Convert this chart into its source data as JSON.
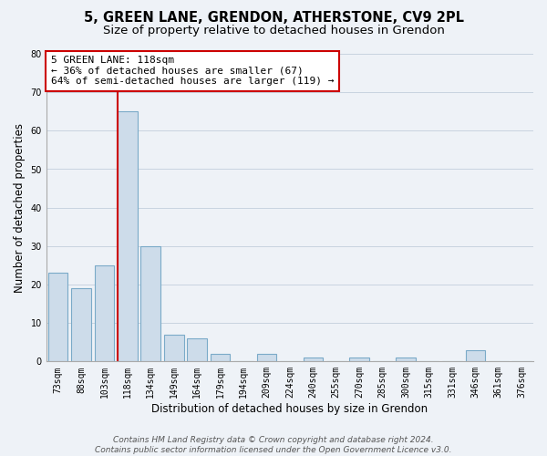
{
  "title": "5, GREEN LANE, GRENDON, ATHERSTONE, CV9 2PL",
  "subtitle": "Size of property relative to detached houses in Grendon",
  "xlabel": "Distribution of detached houses by size in Grendon",
  "ylabel": "Number of detached properties",
  "categories": [
    "73sqm",
    "88sqm",
    "103sqm",
    "118sqm",
    "134sqm",
    "149sqm",
    "164sqm",
    "179sqm",
    "194sqm",
    "209sqm",
    "224sqm",
    "240sqm",
    "255sqm",
    "270sqm",
    "285sqm",
    "300sqm",
    "315sqm",
    "331sqm",
    "346sqm",
    "361sqm",
    "376sqm"
  ],
  "values": [
    23,
    19,
    25,
    65,
    30,
    7,
    6,
    2,
    0,
    2,
    0,
    1,
    0,
    1,
    0,
    1,
    0,
    0,
    3,
    0,
    0
  ],
  "bar_color": "#cddcea",
  "bar_edge_color": "#7aaac8",
  "vline_index": 3,
  "vline_color": "#cc0000",
  "annotation_line1": "5 GREEN LANE: 118sqm",
  "annotation_line2": "← 36% of detached houses are smaller (67)",
  "annotation_line3": "64% of semi-detached houses are larger (119) →",
  "annotation_box_edge_color": "#cc0000",
  "annotation_box_bg_color": "#ffffff",
  "ylim": [
    0,
    80
  ],
  "yticks": [
    0,
    10,
    20,
    30,
    40,
    50,
    60,
    70,
    80
  ],
  "grid_color": "#c8d4e0",
  "bg_color": "#eef2f7",
  "footer_line1": "Contains HM Land Registry data © Crown copyright and database right 2024.",
  "footer_line2": "Contains public sector information licensed under the Open Government Licence v3.0.",
  "title_fontsize": 10.5,
  "subtitle_fontsize": 9.5,
  "axis_label_fontsize": 8.5,
  "tick_fontsize": 7,
  "annotation_fontsize": 8,
  "footer_fontsize": 6.5
}
